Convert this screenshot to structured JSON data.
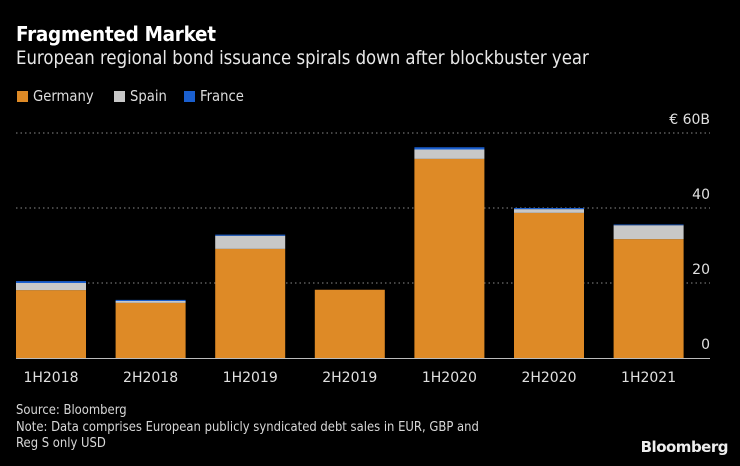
{
  "title": "Fragmented Market",
  "subtitle": "European regional bond issuance spirals down after blockbuster year",
  "legend": [
    {
      "label": "Germany",
      "color": "#de8a26"
    },
    {
      "label": "Spain",
      "color": "#c8c8c8"
    },
    {
      "label": "France",
      "color": "#1a5fcf"
    }
  ],
  "source": "Source: Bloomberg",
  "note_line1": "Note: Data comprises European publicly syndicated debt sales in EUR, GBP and",
  "note_line2": "Reg S only USD",
  "brand": "Bloomberg",
  "chart_data": {
    "type": "bar",
    "stacked": true,
    "title": "Fragmented Market",
    "subtitle": "European regional bond issuance spirals down after blockbuster year",
    "xlabel": "",
    "ylabel": "",
    "y_unit_label": "€ 60B",
    "ylim": [
      0,
      60
    ],
    "yticks": [
      0,
      20,
      40,
      60
    ],
    "ytick_labels": [
      "0",
      "20",
      "40",
      "€ 60B"
    ],
    "grid": true,
    "legend_position": "top-left",
    "categories": [
      "1H2018",
      "2H2018",
      "1H2019",
      "2H2019",
      "1H2020",
      "2H2020",
      "1H2021"
    ],
    "series": [
      {
        "name": "Germany",
        "color": "#de8a26",
        "values": [
          18.1,
          14.7,
          29.1,
          18.2,
          53.1,
          38.7,
          31.7
        ]
      },
      {
        "name": "Spain",
        "color": "#c8c8c8",
        "values": [
          1.9,
          0.5,
          3.5,
          0.0,
          2.5,
          1.0,
          3.7
        ]
      },
      {
        "name": "France",
        "color": "#1a5fcf",
        "values": [
          0.5,
          0.3,
          0.3,
          0.0,
          0.6,
          0.3,
          0.2
        ]
      }
    ]
  }
}
